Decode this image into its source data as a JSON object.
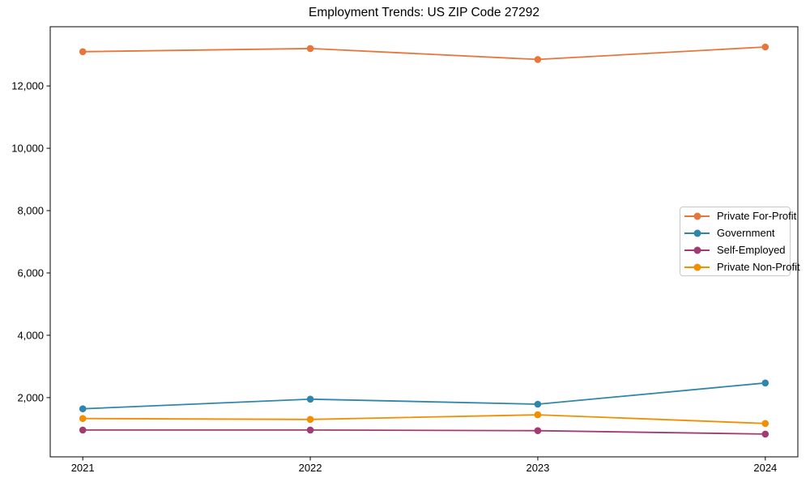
{
  "chart_data": {
    "type": "line",
    "title": "Employment Trends: US ZIP Code 27292",
    "x": [
      2021,
      2022,
      2023,
      2024
    ],
    "x_tick_labels": [
      "2021",
      "2022",
      "2023",
      "2024"
    ],
    "series": [
      {
        "name": "Private For-Profit",
        "color": "#E8763B",
        "values": [
          13100,
          13200,
          12850,
          13250
        ]
      },
      {
        "name": "Government",
        "color": "#2E86AB",
        "values": [
          1640,
          1950,
          1790,
          2470
        ]
      },
      {
        "name": "Self-Employed",
        "color": "#A23B72",
        "values": [
          960,
          960,
          940,
          830
        ]
      },
      {
        "name": "Private Non-Profit",
        "color": "#F18F01",
        "values": [
          1330,
          1300,
          1450,
          1170
        ]
      }
    ],
    "y_ticks": [
      2000,
      4000,
      6000,
      8000,
      10000,
      12000
    ],
    "y_tick_labels": [
      "2,000",
      "4,000",
      "6,000",
      "8,000",
      "10,000",
      "12,000"
    ],
    "xlim": [
      2020.857,
      2024.143
    ],
    "ylim": [
      100,
      13900
    ],
    "grid": false,
    "legend_position": "center right",
    "marker": "circle",
    "axis_color": "#000000"
  }
}
